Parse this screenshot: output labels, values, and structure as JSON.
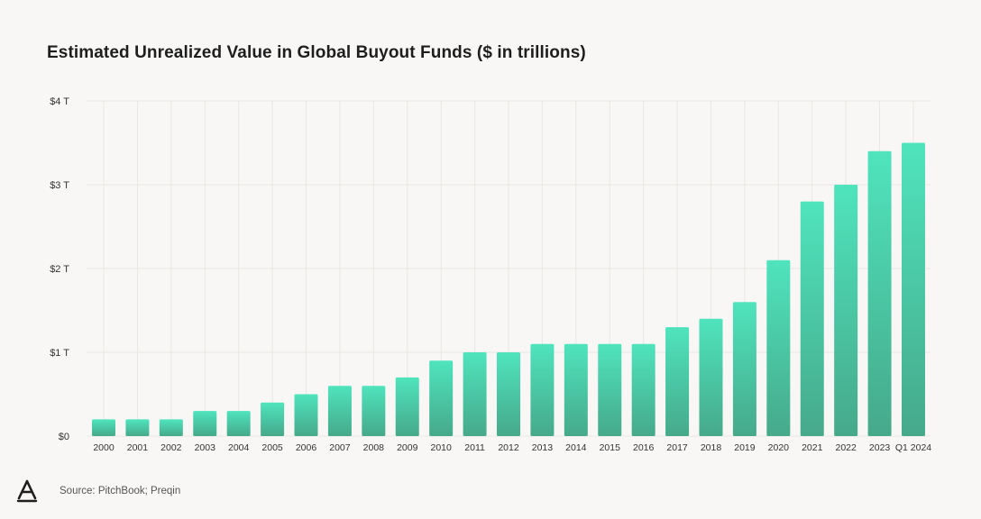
{
  "chart_data": {
    "type": "bar",
    "title": "Estimated Unrealized Value in Global Buyout Funds ($ in trillions)",
    "categories": [
      "2000",
      "2001",
      "2002",
      "2003",
      "2004",
      "2005",
      "2006",
      "2007",
      "2008",
      "2009",
      "2010",
      "2011",
      "2012",
      "2013",
      "2014",
      "2015",
      "2016",
      "2017",
      "2018",
      "2019",
      "2020",
      "2021",
      "2022",
      "2023",
      "Q1 2024"
    ],
    "values": [
      0.2,
      0.2,
      0.2,
      0.3,
      0.3,
      0.4,
      0.5,
      0.6,
      0.6,
      0.7,
      0.9,
      1.0,
      1.0,
      1.1,
      1.1,
      1.1,
      1.1,
      1.3,
      1.4,
      1.6,
      2.1,
      2.8,
      3.0,
      3.4,
      3.5
    ],
    "ylim": [
      0,
      4
    ],
    "yticks": [
      0,
      1,
      2,
      3,
      4
    ],
    "ytick_labels": [
      "$0",
      "$1 T",
      "$2 T",
      "$3 T",
      "$4 T"
    ],
    "xlabel": "",
    "ylabel": "",
    "grid": true,
    "colors": {
      "bar_top": "#4fe4bd",
      "bar_bottom": "#46a98a",
      "grid": "#e9e7e3"
    }
  },
  "footer": {
    "source": "Source: PitchBook; Preqin"
  },
  "icons": {
    "logo": "brand-logo-icon"
  }
}
